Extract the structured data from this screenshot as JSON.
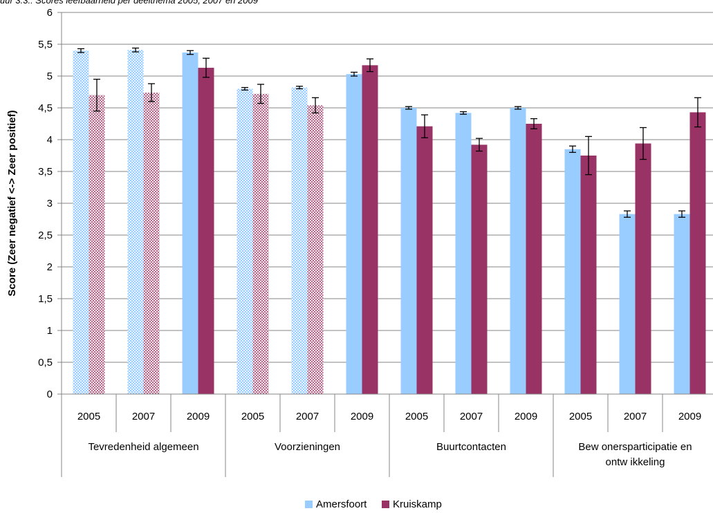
{
  "title": "uur 3.3.: Scores leefbaarheid per deelthema 2005, 2007 en 2009",
  "chart_data": {
    "type": "bar",
    "ylabel": "Score (Zeer negatief <-> Zeer positief)",
    "ylim": [
      0,
      6
    ],
    "yticks": [
      "0",
      "0,5",
      "1",
      "1,5",
      "2",
      "2,5",
      "3",
      "3,5",
      "4",
      "4,5",
      "5",
      "5,5",
      "6"
    ],
    "grid": "horizontal",
    "legend_position": "bottom",
    "groups": [
      {
        "label": [
          "Tevredenheid algemeen"
        ],
        "years": [
          "2005",
          "2007",
          "2009"
        ]
      },
      {
        "label": [
          "Voorzieningen"
        ],
        "years": [
          "2005",
          "2007",
          "2009"
        ]
      },
      {
        "label": [
          "Buurtcontacten"
        ],
        "years": [
          "2005",
          "2007",
          "2009"
        ]
      },
      {
        "label": [
          "Bew onersparticipatie en",
          "ontw ikkeling"
        ],
        "years": [
          "2005",
          "2007",
          "2009"
        ]
      }
    ],
    "series": [
      {
        "name": "Amersfoort",
        "color": "#99ccff",
        "values": [
          5.4,
          5.41,
          5.37,
          4.8,
          4.82,
          5.03,
          4.5,
          4.42,
          4.5,
          3.85,
          2.83,
          2.83
        ],
        "errors": [
          0.03,
          0.03,
          0.03,
          0.02,
          0.02,
          0.03,
          0.02,
          0.02,
          0.02,
          0.05,
          0.05,
          0.05
        ]
      },
      {
        "name": "Kruiskamp",
        "color": "#993366",
        "values": [
          4.7,
          4.74,
          5.13,
          4.72,
          4.54,
          5.17,
          4.21,
          3.92,
          4.25,
          3.75,
          3.94,
          4.43
        ],
        "errors": [
          0.25,
          0.14,
          0.15,
          0.15,
          0.12,
          0.1,
          0.18,
          0.1,
          0.08,
          0.3,
          0.25,
          0.23
        ]
      }
    ],
    "patterned_years": [
      "2005",
      "2007"
    ],
    "patterned_groups": [
      0,
      1
    ]
  }
}
